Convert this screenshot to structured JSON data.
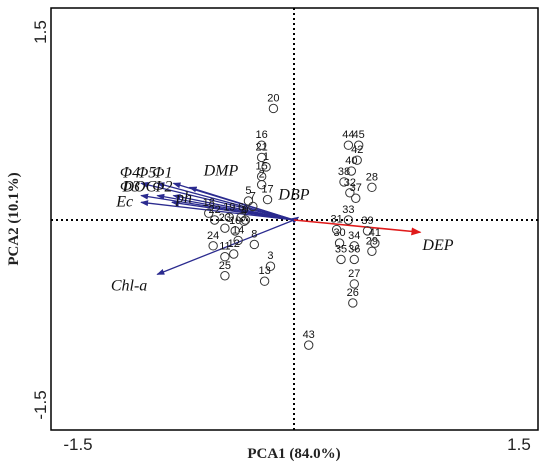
{
  "chart_data": {
    "type": "scatter",
    "subtype": "pca-biplot",
    "xlabel": "PCA1 (84.0%)",
    "ylabel": "PCA2 (10.1%)",
    "xlim": [
      -1.5,
      1.5
    ],
    "ylim": [
      -1.5,
      1.5
    ],
    "x_ticks": [
      "-1.5",
      "1.5"
    ],
    "y_ticks": [
      "1.5",
      "-1.5"
    ],
    "zero_lines": "dotted",
    "colors": {
      "vector": "#2b2b8f",
      "dep_vector": "#e01b1b",
      "point": "#333333",
      "text": "#111111"
    },
    "loadings": [
      {
        "label": "Φ4",
        "x": -1.04,
        "y": 0.27,
        "color": "#2b2b8f"
      },
      {
        "label": "Φ5",
        "x": -0.93,
        "y": 0.27,
        "color": "#2b2b8f"
      },
      {
        "label": "Φ1",
        "x": -0.82,
        "y": 0.27,
        "color": "#2b2b8f"
      },
      {
        "label": "Φ3",
        "x": -1.04,
        "y": 0.18,
        "color": "#2b2b8f"
      },
      {
        "label": "DOC",
        "x": -0.93,
        "y": 0.18,
        "color": "#2b2b8f"
      },
      {
        "label": "Φ2",
        "x": -0.82,
        "y": 0.18,
        "color": "#2b2b8f"
      },
      {
        "label": "Ec",
        "x": -1.04,
        "y": 0.13,
        "color": "#2b2b8f"
      },
      {
        "label": "ph",
        "x": -0.83,
        "y": 0.13,
        "color": "#2b2b8f"
      },
      {
        "label": "DMP",
        "x": -0.71,
        "y": 0.24,
        "color": "#2b2b8f"
      },
      {
        "label": "DBP",
        "x": 0.03,
        "y": 0.02,
        "color": "#2b2b8f"
      },
      {
        "label": "Chl-a",
        "x": -0.93,
        "y": -0.4,
        "color": "#2b2b8f"
      },
      {
        "label": "DEP",
        "x": 0.86,
        "y": -0.09,
        "color": "#e01b1b"
      }
    ],
    "scores": [
      {
        "label": "1",
        "x": -0.19,
        "y": 0.39
      },
      {
        "label": "2",
        "x": -0.22,
        "y": 0.26
      },
      {
        "label": "3",
        "x": -0.16,
        "y": -0.34
      },
      {
        "label": "5",
        "x": -0.31,
        "y": 0.14
      },
      {
        "label": "7",
        "x": -0.28,
        "y": 0.1
      },
      {
        "label": "8",
        "x": -0.27,
        "y": -0.18
      },
      {
        "label": "9",
        "x": -0.33,
        "y": 0.0
      },
      {
        "label": "10",
        "x": -0.4,
        "y": -0.08
      },
      {
        "label": "11",
        "x": -0.47,
        "y": -0.27
      },
      {
        "label": "12",
        "x": -0.41,
        "y": -0.25
      },
      {
        "label": "13",
        "x": -0.2,
        "y": -0.45
      },
      {
        "label": "14",
        "x": -0.38,
        "y": -0.15
      },
      {
        "label": "15",
        "x": -0.22,
        "y": 0.32
      },
      {
        "label": "16",
        "x": -0.22,
        "y": 0.55
      },
      {
        "label": "17",
        "x": -0.18,
        "y": 0.15
      },
      {
        "label": "18",
        "x": -0.58,
        "y": 0.05
      },
      {
        "label": "19",
        "x": -0.44,
        "y": 0.02
      },
      {
        "label": "20",
        "x": -0.14,
        "y": 0.82
      },
      {
        "label": "21",
        "x": -0.22,
        "y": 0.46
      },
      {
        "label": "22",
        "x": -0.54,
        "y": 0.0
      },
      {
        "label": "23",
        "x": -0.47,
        "y": -0.06
      },
      {
        "label": "24",
        "x": -0.55,
        "y": -0.19
      },
      {
        "label": "25",
        "x": -0.47,
        "y": -0.41
      },
      {
        "label": "26",
        "x": 0.4,
        "y": -0.61
      },
      {
        "label": "27",
        "x": 0.41,
        "y": -0.47
      },
      {
        "label": "28",
        "x": 0.53,
        "y": 0.24
      },
      {
        "label": "29",
        "x": 0.53,
        "y": -0.23
      },
      {
        "label": "30",
        "x": 0.31,
        "y": -0.17
      },
      {
        "label": "31",
        "x": 0.29,
        "y": -0.07
      },
      {
        "label": "32",
        "x": 0.38,
        "y": 0.2
      },
      {
        "label": "33",
        "x": 0.37,
        "y": 0.0
      },
      {
        "label": "34",
        "x": 0.41,
        "y": -0.19
      },
      {
        "label": "35",
        "x": 0.32,
        "y": -0.29
      },
      {
        "label": "36",
        "x": 0.41,
        "y": -0.29
      },
      {
        "label": "37",
        "x": 0.42,
        "y": 0.16
      },
      {
        "label": "38",
        "x": 0.34,
        "y": 0.28
      },
      {
        "label": "39",
        "x": 0.5,
        "y": -0.08
      },
      {
        "label": "40",
        "x": 0.39,
        "y": 0.36
      },
      {
        "label": "41",
        "x": 0.55,
        "y": -0.17
      },
      {
        "label": "42",
        "x": 0.43,
        "y": 0.44
      },
      {
        "label": "43",
        "x": 0.1,
        "y": -0.92
      },
      {
        "label": "44",
        "x": 0.37,
        "y": 0.55
      },
      {
        "label": "45",
        "x": 0.44,
        "y": 0.55
      },
      {
        "label": "4",
        "x": -0.34,
        "y": -0.01
      },
      {
        "label": "6",
        "x": -0.36,
        "y": 0.02
      }
    ]
  }
}
